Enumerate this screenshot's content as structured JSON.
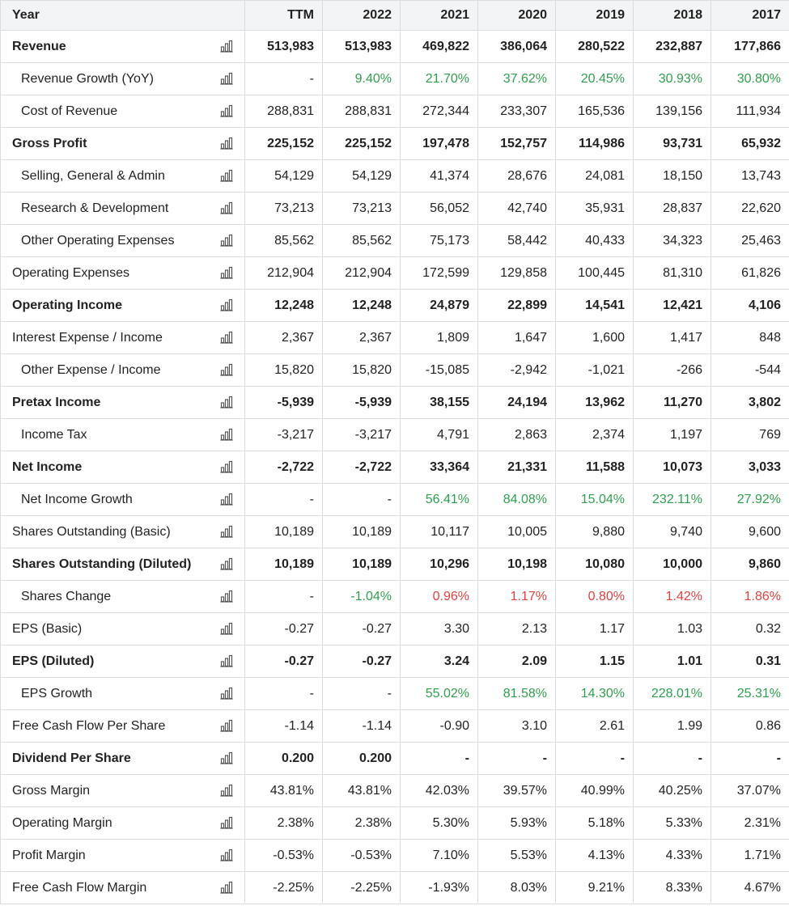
{
  "colors": {
    "positive": "#2e9e4e",
    "negative": "#e04040",
    "header_bg": "#f3f4f6",
    "border": "#d9dde3"
  },
  "icon": "bar-chart-icon",
  "header": {
    "label": "Year",
    "columns": [
      "TTM",
      "2022",
      "2021",
      "2020",
      "2019",
      "2018",
      "2017"
    ]
  },
  "rows": [
    {
      "label": "Revenue",
      "values": [
        "513,983",
        "513,983",
        "469,822",
        "386,064",
        "280,522",
        "232,887",
        "177,866"
      ]
    },
    {
      "label": "Revenue Growth (YoY)",
      "values": [
        "-",
        "9.40%",
        "21.70%",
        "37.62%",
        "20.45%",
        "30.93%",
        "30.80%"
      ]
    },
    {
      "label": "Cost of Revenue",
      "values": [
        "288,831",
        "288,831",
        "272,344",
        "233,307",
        "165,536",
        "139,156",
        "111,934"
      ]
    },
    {
      "label": "Gross Profit",
      "values": [
        "225,152",
        "225,152",
        "197,478",
        "152,757",
        "114,986",
        "93,731",
        "65,932"
      ]
    },
    {
      "label": "Selling, General & Admin",
      "values": [
        "54,129",
        "54,129",
        "41,374",
        "28,676",
        "24,081",
        "18,150",
        "13,743"
      ]
    },
    {
      "label": "Research & Development",
      "values": [
        "73,213",
        "73,213",
        "56,052",
        "42,740",
        "35,931",
        "28,837",
        "22,620"
      ]
    },
    {
      "label": "Other Operating Expenses",
      "values": [
        "85,562",
        "85,562",
        "75,173",
        "58,442",
        "40,433",
        "34,323",
        "25,463"
      ]
    },
    {
      "label": "Operating Expenses",
      "values": [
        "212,904",
        "212,904",
        "172,599",
        "129,858",
        "100,445",
        "81,310",
        "61,826"
      ]
    },
    {
      "label": "Operating Income",
      "values": [
        "12,248",
        "12,248",
        "24,879",
        "22,899",
        "14,541",
        "12,421",
        "4,106"
      ]
    },
    {
      "label": "Interest Expense / Income",
      "values": [
        "2,367",
        "2,367",
        "1,809",
        "1,647",
        "1,600",
        "1,417",
        "848"
      ]
    },
    {
      "label": "Other Expense / Income",
      "values": [
        "15,820",
        "15,820",
        "-15,085",
        "-2,942",
        "-1,021",
        "-266",
        "-544"
      ]
    },
    {
      "label": "Pretax Income",
      "values": [
        "-5,939",
        "-5,939",
        "38,155",
        "24,194",
        "13,962",
        "11,270",
        "3,802"
      ]
    },
    {
      "label": "Income Tax",
      "values": [
        "-3,217",
        "-3,217",
        "4,791",
        "2,863",
        "2,374",
        "1,197",
        "769"
      ]
    },
    {
      "label": "Net Income",
      "values": [
        "-2,722",
        "-2,722",
        "33,364",
        "21,331",
        "11,588",
        "10,073",
        "3,033"
      ]
    },
    {
      "label": "Net Income Growth",
      "values": [
        "-",
        "-",
        "56.41%",
        "84.08%",
        "15.04%",
        "232.11%",
        "27.92%"
      ]
    },
    {
      "label": "Shares Outstanding (Basic)",
      "values": [
        "10,189",
        "10,189",
        "10,117",
        "10,005",
        "9,880",
        "9,740",
        "9,600"
      ]
    },
    {
      "label": "Shares Outstanding (Diluted)",
      "values": [
        "10,189",
        "10,189",
        "10,296",
        "10,198",
        "10,080",
        "10,000",
        "9,860"
      ]
    },
    {
      "label": "Shares Change",
      "values": [
        "-",
        "-1.04%",
        "0.96%",
        "1.17%",
        "0.80%",
        "1.42%",
        "1.86%"
      ]
    },
    {
      "label": "EPS (Basic)",
      "values": [
        "-0.27",
        "-0.27",
        "3.30",
        "2.13",
        "1.17",
        "1.03",
        "0.32"
      ]
    },
    {
      "label": "EPS (Diluted)",
      "values": [
        "-0.27",
        "-0.27",
        "3.24",
        "2.09",
        "1.15",
        "1.01",
        "0.31"
      ]
    },
    {
      "label": "EPS Growth",
      "values": [
        "-",
        "-",
        "55.02%",
        "81.58%",
        "14.30%",
        "228.01%",
        "25.31%"
      ]
    },
    {
      "label": "Free Cash Flow Per Share",
      "values": [
        "-1.14",
        "-1.14",
        "-0.90",
        "3.10",
        "2.61",
        "1.99",
        "0.86"
      ]
    },
    {
      "label": "Dividend Per Share",
      "values": [
        "0.200",
        "0.200",
        "-",
        "-",
        "-",
        "-",
        "-"
      ]
    },
    {
      "label": "Gross Margin",
      "values": [
        "43.81%",
        "43.81%",
        "42.03%",
        "39.57%",
        "40.99%",
        "40.25%",
        "37.07%"
      ]
    },
    {
      "label": "Operating Margin",
      "values": [
        "2.38%",
        "2.38%",
        "5.30%",
        "5.93%",
        "5.18%",
        "5.33%",
        "2.31%"
      ]
    },
    {
      "label": "Profit Margin",
      "values": [
        "-0.53%",
        "-0.53%",
        "7.10%",
        "5.53%",
        "4.13%",
        "4.33%",
        "1.71%"
      ]
    },
    {
      "label": "Free Cash Flow Margin",
      "values": [
        "-2.25%",
        "-2.25%",
        "-1.93%",
        "8.03%",
        "9.21%",
        "8.33%",
        "4.67%"
      ]
    }
  ]
}
